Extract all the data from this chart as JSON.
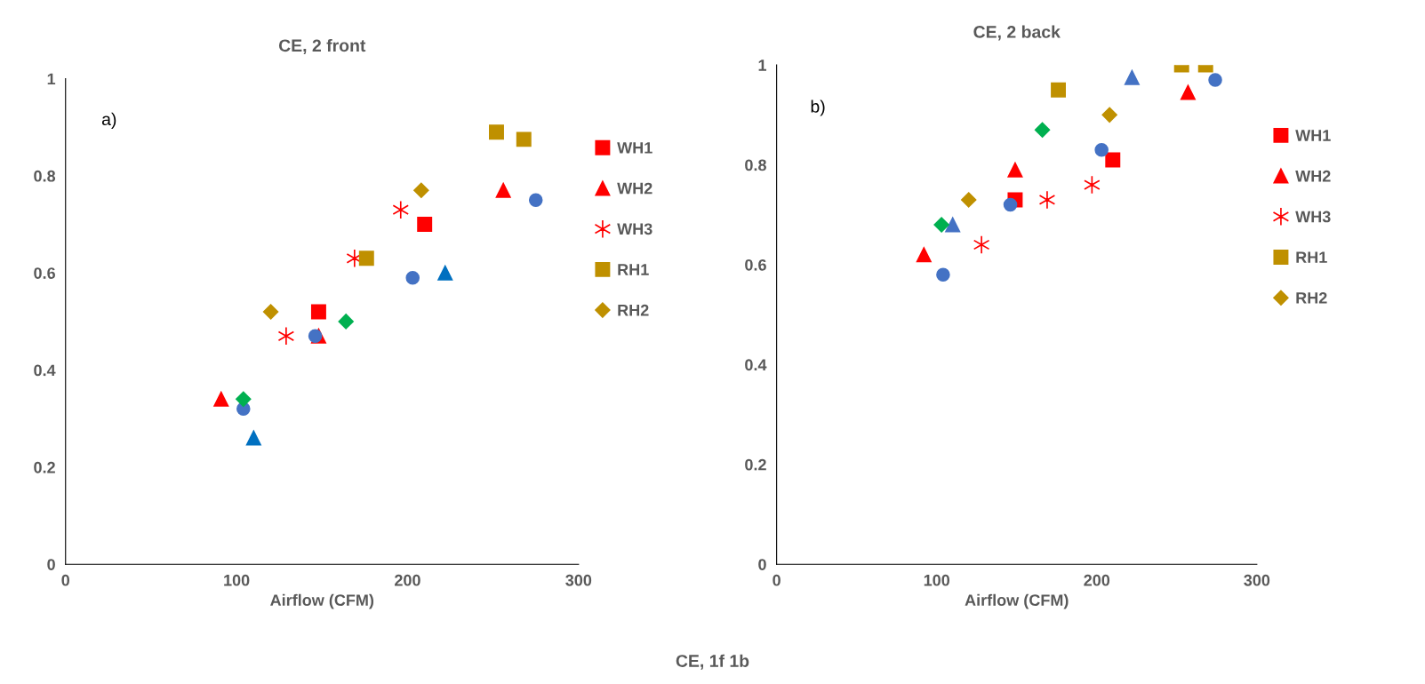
{
  "chart_data": [
    {
      "type": "scatter",
      "title": "CE, 2 front",
      "xlabel": "Airflow (CFM)",
      "xlim": [
        0,
        300
      ],
      "xticks": [
        0,
        100,
        200,
        300
      ],
      "ylim": [
        0,
        1
      ],
      "yticks": [
        0,
        0.2,
        0.4,
        0.6,
        0.8,
        1
      ],
      "grid": false,
      "legend": "right",
      "annotations": [
        "a)"
      ],
      "series": [
        {
          "name": "WH1",
          "color": "#ff0000",
          "marker": "square",
          "x": [
            148,
            210
          ],
          "values": [
            0.52,
            0.7
          ]
        },
        {
          "name": "WH2",
          "color": "#ff0000",
          "marker": "triangle",
          "x": [
            91,
            148,
            256
          ],
          "values": [
            0.34,
            0.47,
            0.77
          ]
        },
        {
          "name": "WH3",
          "color": "#ff0000",
          "marker": "cross",
          "x": [
            129,
            169,
            196
          ],
          "values": [
            0.47,
            0.63,
            0.73
          ]
        },
        {
          "color": "#0070c0",
          "marker": "triangle",
          "x": [
            110,
            222
          ],
          "values": [
            0.26,
            0.6
          ]
        },
        {
          "color": "#4472c4",
          "marker": "circle",
          "x": [
            104,
            146,
            203,
            275
          ],
          "values": [
            0.32,
            0.47,
            0.59,
            0.75
          ]
        },
        {
          "color": "#00b050",
          "marker": "diamond",
          "x": [
            104,
            164
          ],
          "values": [
            0.34,
            0.5
          ]
        },
        {
          "name": "RH1",
          "color": "#bf9000",
          "marker": "square",
          "x": [
            176,
            252,
            268
          ],
          "values": [
            0.63,
            0.89,
            0.875
          ]
        },
        {
          "name": "RH2",
          "color": "#bf9000",
          "marker": "diamond",
          "x": [
            120,
            208
          ],
          "values": [
            0.52,
            0.77
          ]
        }
      ]
    },
    {
      "type": "scatter",
      "title": "CE, 2 back",
      "xlabel": "Airflow (CFM)",
      "xlim": [
        0,
        300
      ],
      "xticks": [
        0,
        100,
        200,
        300
      ],
      "ylim": [
        0,
        1
      ],
      "yticks": [
        0,
        0.2,
        0.4,
        0.6,
        0.8,
        1
      ],
      "grid": false,
      "legend": "right",
      "annotations": [
        "b)",
        "CE, 1f 1b"
      ],
      "series": [
        {
          "name": "WH1",
          "color": "#ff0000",
          "marker": "square",
          "x": [
            149,
            210
          ],
          "values": [
            0.73,
            0.81
          ]
        },
        {
          "name": "WH2",
          "color": "#ff0000",
          "marker": "triangle",
          "x": [
            92,
            149,
            257
          ],
          "values": [
            0.62,
            0.79,
            0.945
          ]
        },
        {
          "name": "WH3",
          "color": "#ff0000",
          "marker": "cross",
          "x": [
            128,
            169,
            197
          ],
          "values": [
            0.64,
            0.73,
            0.76
          ]
        },
        {
          "color": "#4472c4",
          "marker": "triangle",
          "x": [
            110,
            222
          ],
          "values": [
            0.68,
            0.975
          ]
        },
        {
          "color": "#4472c4",
          "marker": "circle",
          "x": [
            104,
            146,
            203,
            274
          ],
          "values": [
            0.58,
            0.72,
            0.83,
            0.97
          ]
        },
        {
          "color": "#00b050",
          "marker": "diamond",
          "x": [
            103,
            166
          ],
          "values": [
            0.68,
            0.87
          ]
        },
        {
          "name": "RH1",
          "color": "#bf9000",
          "marker": "square",
          "x": [
            176,
            253,
            268
          ],
          "values": [
            0.95,
            1.0,
            1.0
          ]
        },
        {
          "name": "RH2",
          "color": "#bf9000",
          "marker": "diamond",
          "x": [
            120,
            208
          ],
          "values": [
            0.73,
            0.9
          ]
        }
      ]
    }
  ]
}
